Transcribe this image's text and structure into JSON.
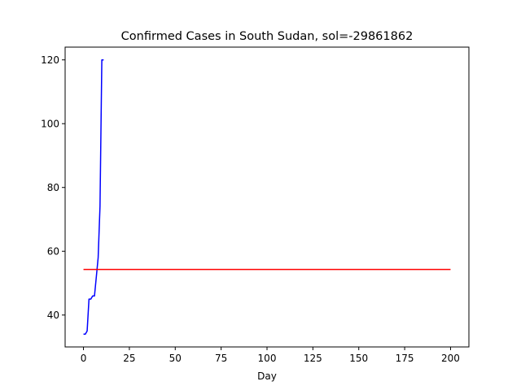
{
  "chart_data": {
    "type": "line",
    "title": "Confirmed Cases in South Sudan, sol=-29861862",
    "xlabel": "Day",
    "ylabel": "",
    "xlim": [
      -10,
      210
    ],
    "ylim": [
      30,
      124
    ],
    "xticks": [
      0,
      25,
      50,
      75,
      100,
      125,
      150,
      175,
      200
    ],
    "yticks": [
      40,
      60,
      80,
      100,
      120
    ],
    "grid": false,
    "series": [
      {
        "color": "#0000ff",
        "x": [
          0,
          1,
          2,
          3,
          4,
          5,
          6,
          7,
          8,
          9,
          10,
          11
        ],
        "y": [
          34,
          34,
          35,
          45,
          45,
          46,
          46,
          52,
          58,
          74,
          120,
          120
        ]
      },
      {
        "color": "#ff0000",
        "x": [
          0,
          200
        ],
        "y": [
          54.3,
          54.3
        ]
      }
    ]
  }
}
